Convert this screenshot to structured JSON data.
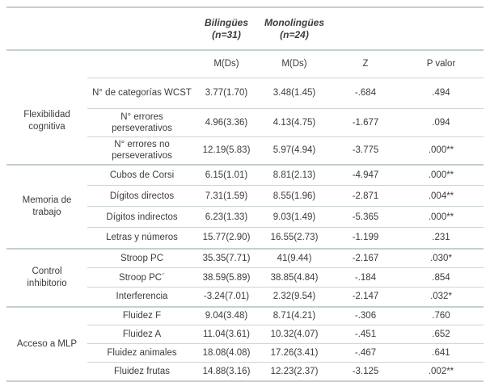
{
  "table": {
    "header": {
      "bilingues": {
        "title": "Bilingües",
        "n": "(n=31)"
      },
      "monolingues": {
        "title": "Monolingües",
        "n": "(n=24)"
      },
      "m1": "M(Ds)",
      "m2": "M(Ds)",
      "z": "Z",
      "p": "P valor"
    },
    "sections": [
      {
        "name": "Flexibilidad cognitiva",
        "rows": [
          {
            "measure": "N° de categorías WCST",
            "bil": "3.77(1.70)",
            "mono": "3.48(1.45)",
            "z": "-.684",
            "p": ".494"
          },
          {
            "measure": "N° errores perseverativos",
            "bil": "4.96(3.36)",
            "mono": "4.13(4.75)",
            "z": "-1.677",
            "p": ".094"
          },
          {
            "measure": "N° errores no perseverativos",
            "bil": "12.19(5.83)",
            "mono": "5.97(4.94)",
            "z": "-3.775",
            "p": ".000**"
          }
        ]
      },
      {
        "name": "Memoria de trabajo",
        "rows": [
          {
            "measure": "Cubos de Corsi",
            "bil": "6.15(1.01)",
            "mono": "8.81(2.13)",
            "z": "-4.947",
            "p": ".000**"
          },
          {
            "measure": "Dígitos directos",
            "bil": "7.31(1.59)",
            "mono": "8.55(1.96)",
            "z": "-2.871",
            "p": ".004**"
          },
          {
            "measure": "Dígitos indirectos",
            "bil": "6.23(1.33)",
            "mono": "9.03(1.49)",
            "z": "-5.365",
            "p": ".000**"
          },
          {
            "measure": "Letras y números",
            "bil": "15.77(2.90)",
            "mono": "16.55(2.73)",
            "z": "-1.199",
            "p": ".231"
          }
        ]
      },
      {
        "name": "Control inhibitorio",
        "rows": [
          {
            "measure": "Stroop PC",
            "bil": "35.35(7.71)",
            "mono": "41(9.44)",
            "z": "-2.167",
            "p": ".030*"
          },
          {
            "measure": "Stroop PC´",
            "bil": "38.59(5.89)",
            "mono": "38.85(4.84)",
            "z": "-.184",
            "p": ".854"
          },
          {
            "measure": "Interferencia",
            "bil": "-3.24(7.01)",
            "mono": "2.32(9.54)",
            "z": "-2.147",
            "p": ".032*"
          }
        ]
      },
      {
        "name": "Acceso a MLP",
        "rows": [
          {
            "measure": "Fluidez F",
            "bil": "9.04(3.48)",
            "mono": "8.71(4.21)",
            "z": "-.306",
            "p": ".760"
          },
          {
            "measure": "Fluidez A",
            "bil": "11.04(3.61)",
            "mono": "10.32(4.07)",
            "z": "-.451",
            "p": ".652"
          },
          {
            "measure": "Fluidez animales",
            "bil": "18.08(4.08)",
            "mono": "17.26(3.41)",
            "z": "-.467",
            "p": ".641"
          },
          {
            "measure": "Fluidez frutas",
            "bil": "14.88(3.16)",
            "mono": "12.23(2.37)",
            "z": "-3.125",
            "p": ".002**"
          }
        ]
      }
    ]
  }
}
